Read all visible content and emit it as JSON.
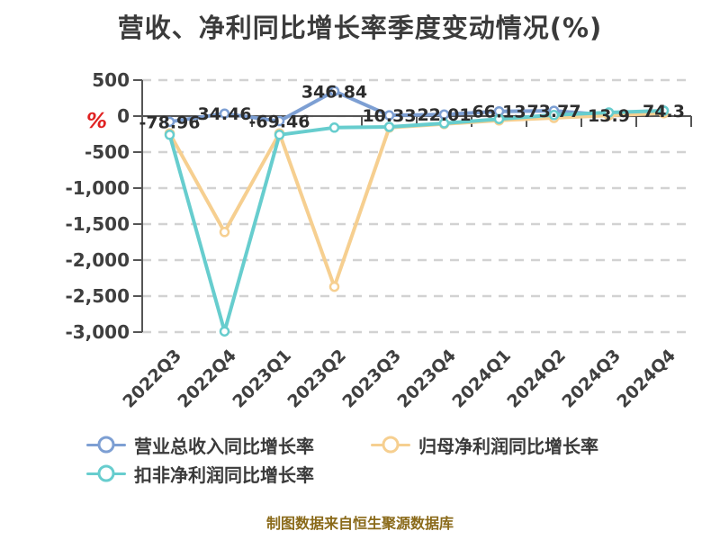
{
  "footer": {
    "source_note": "制图数据来自恒生聚源数据库"
  },
  "colors": {
    "axis": "#555555",
    "grid": "#d2d2d2",
    "data_label": "#2d2d2d",
    "title": "#3b3b3b",
    "y_unit": "#e02222",
    "footer": "#8a6a1a"
  },
  "chart_data": {
    "type": "line",
    "title": "营收、净利同比增长率季度变动情况(%)",
    "y_unit": "%",
    "xlabel": "",
    "ylabel": "%",
    "categories": [
      "2022Q3",
      "2022Q4",
      "2023Q1",
      "2023Q2",
      "2023Q3",
      "2023Q4",
      "2024Q1",
      "2024Q2",
      "2024Q3",
      "2024Q4"
    ],
    "ylim": [
      -3000,
      500
    ],
    "y_ticks": [
      500,
      0,
      -500,
      -1000,
      -1500,
      -2000,
      -2500,
      -3000
    ],
    "y_tick_labels": [
      "500",
      "0",
      "-500",
      "-1,000",
      "-1,500",
      "-2,000",
      "-2,500",
      "-3,000"
    ],
    "grid": "horizontal-dashed",
    "legend_position": "bottom-left",
    "series": [
      {
        "key": "revenue-growth",
        "name": "营业总收入同比增长率",
        "color": "#7d9fd3",
        "labels_shown": true,
        "values": [
          -78.96,
          34.46,
          -69.46,
          346.84,
          10.33,
          22.01,
          66.13,
          73.77,
          13.9,
          74.3
        ],
        "point_labels": [
          "-78.96",
          "34.46",
          "-69.46",
          "346.84",
          "10.33",
          "22.01",
          "66.13",
          "73.77",
          "13.9",
          "74.3"
        ]
      },
      {
        "key": "net-profit-growth",
        "name": "归母净利润同比增长率",
        "color": "#f6cf90",
        "labels_shown": false,
        "values": [
          -240,
          -1610,
          -240,
          -2370,
          -160,
          -110,
          -60,
          -25,
          10,
          40
        ]
      },
      {
        "key": "deducted-net-profit-growth",
        "name": "扣非净利润同比增长率",
        "color": "#67cdce",
        "labels_shown": false,
        "values": [
          -260,
          -2990,
          -260,
          -160,
          -150,
          -100,
          -40,
          15,
          50,
          75
        ]
      }
    ]
  }
}
